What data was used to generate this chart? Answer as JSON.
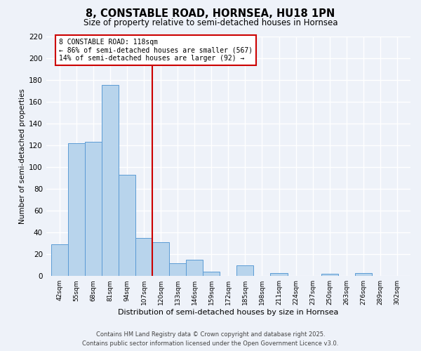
{
  "title": "8, CONSTABLE ROAD, HORNSEA, HU18 1PN",
  "subtitle": "Size of property relative to semi-detached houses in Hornsea",
  "xlabel": "Distribution of semi-detached houses by size in Hornsea",
  "ylabel": "Number of semi-detached properties",
  "bin_labels": [
    "42sqm",
    "55sqm",
    "68sqm",
    "81sqm",
    "94sqm",
    "107sqm",
    "120sqm",
    "133sqm",
    "146sqm",
    "159sqm",
    "172sqm",
    "185sqm",
    "198sqm",
    "211sqm",
    "224sqm",
    "237sqm",
    "250sqm",
    "263sqm",
    "276sqm",
    "289sqm",
    "302sqm"
  ],
  "bin_edges": [
    42,
    55,
    68,
    81,
    94,
    107,
    120,
    133,
    146,
    159,
    172,
    185,
    198,
    211,
    224,
    237,
    250,
    263,
    276,
    289,
    302
  ],
  "counts": [
    29,
    122,
    123,
    175,
    93,
    35,
    31,
    12,
    15,
    4,
    0,
    10,
    0,
    3,
    0,
    0,
    2,
    0,
    3,
    0
  ],
  "bar_color": "#b8d4ec",
  "bar_edge_color": "#5b9bd5",
  "vline_x": 120,
  "vline_color": "#cc0000",
  "annotation_title": "8 CONSTABLE ROAD: 118sqm",
  "annotation_line1": "← 86% of semi-detached houses are smaller (567)",
  "annotation_line2": "14% of semi-detached houses are larger (92) →",
  "annotation_box_color": "white",
  "annotation_box_edge": "#cc0000",
  "ylim": [
    0,
    220
  ],
  "yticks": [
    0,
    20,
    40,
    60,
    80,
    100,
    120,
    140,
    160,
    180,
    200,
    220
  ],
  "footer_line1": "Contains HM Land Registry data © Crown copyright and database right 2025.",
  "footer_line2": "Contains public sector information licensed under the Open Government Licence v3.0.",
  "bg_color": "#eef2f9",
  "grid_color": "white"
}
